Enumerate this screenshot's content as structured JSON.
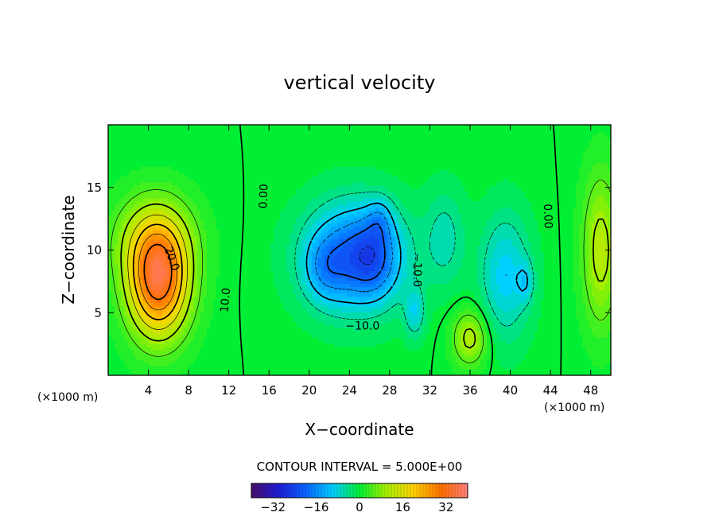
{
  "chart_data": {
    "type": "heatmap",
    "subtype": "filled-contour",
    "title": "vertical velocity",
    "xlabel": "X−coordinate",
    "ylabel": "Z−coordinate",
    "x_unit_label": "(×1000 m)",
    "z_unit_label": "(×1000 m)",
    "xlim": [
      0,
      50
    ],
    "ylim": [
      0,
      20
    ],
    "x_ticks": [
      4,
      8,
      12,
      16,
      20,
      24,
      28,
      32,
      36,
      40,
      44,
      48
    ],
    "x_tick_labels": [
      "4",
      "8",
      "12",
      "16",
      "20",
      "24",
      "28",
      "32",
      "36",
      "40",
      "44",
      "48"
    ],
    "y_ticks": [
      5,
      10,
      15
    ],
    "y_tick_labels": [
      "5",
      "10",
      "15"
    ],
    "contour_interval_text": "CONTOUR INTERVAL = 5.000E+00",
    "contour_interval": 5.0,
    "colorbar": {
      "min": -40,
      "max": 40,
      "ticks": [
        -32,
        -16,
        0,
        16,
        32
      ],
      "tick_labels": [
        "−32",
        "−16",
        "0",
        "16",
        "32"
      ]
    },
    "contour_labels": [
      {
        "text": "20.0",
        "x": 6.3,
        "z": 9.3,
        "angle": 70
      },
      {
        "text": "10.0",
        "x": 11.7,
        "z": 6.0,
        "angle": -85
      },
      {
        "text": "0.00",
        "x": 15.5,
        "z": 14.3,
        "angle": -88
      },
      {
        "text": "−10.0",
        "x": 25.3,
        "z": 3.9,
        "angle": 0
      },
      {
        "text": "−10.0",
        "x": 30.7,
        "z": 8.4,
        "angle": 90
      },
      {
        "text": "0.00",
        "x": 43.7,
        "z": 12.7,
        "angle": 88
      }
    ],
    "features": [
      {
        "name": "updraft-core",
        "x": 5.0,
        "z": 7.5,
        "value": 32,
        "sx": 3.0,
        "sz": 4.4
      },
      {
        "name": "updraft-flank",
        "x": 4.5,
        "z": 11.0,
        "value": 10,
        "sx": 4.0,
        "sz": 3.5
      },
      {
        "name": "downdraft-main",
        "x": 24.5,
        "z": 9.5,
        "value": -20,
        "sx": 4.8,
        "sz": 4.2
      },
      {
        "name": "downdraft-core",
        "x": 26.5,
        "z": 9.5,
        "value": -8,
        "sx": 2.2,
        "sz": 3.0
      },
      {
        "name": "downdraft-west",
        "x": 21.5,
        "z": 8.5,
        "value": -6,
        "sx": 2.0,
        "sz": 2.5
      },
      {
        "name": "downdraft-upper",
        "x": 27.0,
        "z": 12.5,
        "value": -6,
        "sx": 1.2,
        "sz": 1.6
      },
      {
        "name": "downdraft-low",
        "x": 30.5,
        "z": 5.0,
        "value": -8,
        "sx": 1.0,
        "sz": 2.0
      },
      {
        "name": "downdraft-east",
        "x": 39.5,
        "z": 8.0,
        "value": -10,
        "sx": 2.5,
        "sz": 5.0
      },
      {
        "name": "downdraft-east-2",
        "x": 33.5,
        "z": 11.0,
        "value": -6,
        "sx": 2.0,
        "sz": 4.0
      },
      {
        "name": "downdraft-pocket",
        "x": 41.5,
        "z": 7.5,
        "value": -6,
        "sx": 0.8,
        "sz": 1.6
      },
      {
        "name": "small-updraft",
        "x": 36.0,
        "z": 3.0,
        "value": 12,
        "sx": 1.7,
        "sz": 2.2
      },
      {
        "name": "east-updraft",
        "x": 49.0,
        "z": 10.0,
        "value": 12,
        "sx": 1.8,
        "sz": 6.0
      }
    ]
  }
}
